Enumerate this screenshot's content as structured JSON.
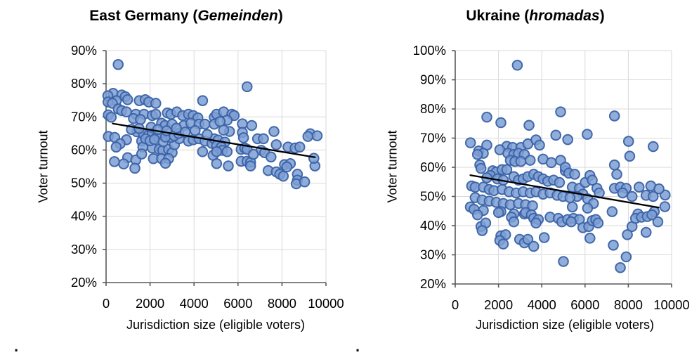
{
  "page": {
    "background": "#ffffff"
  },
  "marks": {
    "dot1": ".",
    "dot2": "."
  },
  "chart_data": [
    {
      "type": "scatter",
      "title_pre": "East Germany (",
      "title_italic": "Gemeinden",
      "title_post": ")",
      "xlabel": "Jurisdiction size (eligible voters)",
      "ylabel": "Voter turnout",
      "xlim": [
        0,
        10000
      ],
      "ylim": [
        20,
        90
      ],
      "x_tick_values": [
        0,
        2000,
        4000,
        6000,
        8000,
        10000
      ],
      "x_tick_labels": [
        "0",
        "2000",
        "4000",
        "6000",
        "8000",
        "10000"
      ],
      "y_tick_values": [
        20,
        30,
        40,
        50,
        60,
        70,
        80,
        90
      ],
      "y_tick_labels": [
        "20%",
        "30%",
        "40%",
        "50%",
        "60%",
        "70%",
        "80%",
        "90%"
      ],
      "grid": true,
      "legend": "none",
      "colors": {
        "point_fill": "#7E9FD4",
        "point_stroke": "#3A62A7",
        "grid": "#D9D9D9",
        "axis": "#595959",
        "trend": "#000000"
      },
      "trendline": {
        "x1": 300,
        "y1": 68.0,
        "x2": 9500,
        "y2": 57.8
      },
      "points": [
        [
          550,
          85.8
        ],
        [
          320,
          77.1
        ],
        [
          80,
          76.4
        ],
        [
          712,
          76.6
        ],
        [
          872,
          76.1
        ],
        [
          470,
          74.9
        ],
        [
          90,
          74.5
        ],
        [
          288,
          74.1
        ],
        [
          980,
          75.2
        ],
        [
          1510,
          74.9
        ],
        [
          1780,
          75.2
        ],
        [
          1940,
          74.5
        ],
        [
          2260,
          74.1
        ],
        [
          4390,
          74.9
        ],
        [
          553,
          72.4
        ],
        [
          712,
          71.9
        ],
        [
          927,
          71.5
        ],
        [
          1352,
          70.8
        ],
        [
          1725,
          70.8
        ],
        [
          2099,
          70.4
        ],
        [
          2259,
          70.8
        ],
        [
          2789,
          71.2
        ],
        [
          2949,
          70.8
        ],
        [
          3217,
          71.5
        ],
        [
          3482,
          70.4
        ],
        [
          3747,
          70.8
        ],
        [
          3961,
          70.4
        ],
        [
          4175,
          69.7
        ],
        [
          100,
          70.6
        ],
        [
          233,
          69.9
        ],
        [
          1246,
          69.5
        ],
        [
          1565,
          69.2
        ],
        [
          2524,
          68.1
        ],
        [
          2684,
          67.4
        ],
        [
          3003,
          67.8
        ],
        [
          3536,
          67.4
        ],
        [
          3856,
          68.1
        ],
        [
          4227,
          67.8
        ],
        [
          4495,
          67.8
        ],
        [
          4920,
          69.9
        ],
        [
          4920,
          67.8
        ],
        [
          6413,
          79.1
        ],
        [
          5026,
          70.8
        ],
        [
          5345,
          71.5
        ],
        [
          5719,
          70.8
        ],
        [
          5825,
          70.4
        ],
        [
          5505,
          69.0
        ],
        [
          5185,
          68.6
        ],
        [
          6198,
          67.9
        ],
        [
          6623,
          67.4
        ],
        [
          6198,
          65.3
        ],
        [
          5613,
          65.6
        ],
        [
          5345,
          66.0
        ],
        [
          7635,
          65.6
        ],
        [
          9286,
          64.9
        ],
        [
          100,
          64.1
        ],
        [
          393,
          63.8
        ],
        [
          927,
          63.1
        ],
        [
          1620,
          62.7
        ],
        [
          1671,
          60.9
        ],
        [
          2099,
          60.6
        ],
        [
          2418,
          60.2
        ],
        [
          2578,
          59.9
        ],
        [
          2844,
          60.2
        ],
        [
          3003,
          59.2
        ],
        [
          3109,
          61.6
        ],
        [
          3323,
          63.4
        ],
        [
          2949,
          63.8
        ],
        [
          3747,
          62.7
        ],
        [
          3961,
          63.1
        ],
        [
          4227,
          63.4
        ],
        [
          4495,
          62.7
        ],
        [
          4814,
          62.0
        ],
        [
          4920,
          63.4
        ],
        [
          4387,
          59.5
        ],
        [
          4867,
          58.4
        ],
        [
          980,
          57.7
        ],
        [
          1352,
          57.0
        ],
        [
          1620,
          58.8
        ],
        [
          2150,
          57.4
        ],
        [
          2524,
          57.4
        ],
        [
          2844,
          57.4
        ],
        [
          1400,
          65.5
        ],
        [
          1700,
          64.8
        ],
        [
          1900,
          64.3
        ],
        [
          2100,
          65.0
        ],
        [
          2300,
          64.0
        ],
        [
          2500,
          64.5
        ],
        [
          1800,
          63.4
        ],
        [
          2000,
          62.8
        ],
        [
          2200,
          63.2
        ],
        [
          2600,
          62.5
        ],
        [
          2700,
          63.9
        ],
        [
          3100,
          64.3
        ],
        [
          3300,
          65.0
        ],
        [
          1150,
          66.2
        ],
        [
          1500,
          66.5
        ],
        [
          2050,
          66.9
        ],
        [
          2350,
          66.2
        ],
        [
          2750,
          65.8
        ],
        [
          3200,
          66.6
        ],
        [
          3600,
          65.4
        ],
        [
          4050,
          65.9
        ],
        [
          4600,
          64.7
        ],
        [
          5100,
          63.0
        ],
        [
          5400,
          62.4
        ],
        [
          5026,
          61.3
        ],
        [
          5240,
          60.9
        ],
        [
          5293,
          59.9
        ],
        [
          5026,
          59.5
        ],
        [
          5505,
          59.5
        ],
        [
          6144,
          60.2
        ],
        [
          6304,
          60.6
        ],
        [
          6413,
          60.2
        ],
        [
          6251,
          63.7
        ],
        [
          6890,
          63.4
        ],
        [
          7156,
          63.4
        ],
        [
          7741,
          61.6
        ],
        [
          8275,
          60.9
        ],
        [
          8594,
          60.6
        ],
        [
          8808,
          60.9
        ],
        [
          9179,
          64.1
        ],
        [
          7051,
          59.9
        ],
        [
          7211,
          59.2
        ],
        [
          5026,
          55.9
        ],
        [
          5559,
          55.2
        ],
        [
          6144,
          56.6
        ],
        [
          6413,
          56.6
        ],
        [
          6572,
          56.3
        ],
        [
          6572,
          55.2
        ],
        [
          7371,
          53.8
        ],
        [
          7741,
          53.4
        ],
        [
          7901,
          52.7
        ],
        [
          8115,
          55.6
        ],
        [
          8381,
          55.9
        ],
        [
          8222,
          54.9
        ],
        [
          8701,
          52.7
        ],
        [
          8701,
          50.9
        ],
        [
          8648,
          49.8
        ],
        [
          9499,
          55.2
        ],
        [
          800,
          55.8
        ],
        [
          1310,
          54.5
        ],
        [
          2700,
          56.0
        ],
        [
          640,
          61.9
        ],
        [
          460,
          60.9
        ],
        [
          380,
          56.5
        ],
        [
          9030,
          50.4
        ],
        [
          9450,
          57.5
        ],
        [
          6700,
          58.7
        ],
        [
          7500,
          57.9
        ],
        [
          8060,
          52.1
        ],
        [
          9600,
          64.3
        ]
      ]
    },
    {
      "type": "scatter",
      "title_pre": "Ukraine (",
      "title_italic": "hromadas",
      "title_post": ")",
      "xlabel": "Jurisdiction size (eligible voters)",
      "ylabel": "Voter turnout",
      "xlim": [
        0,
        10000
      ],
      "ylim": [
        20,
        100
      ],
      "x_tick_values": [
        0,
        2000,
        4000,
        6000,
        8000,
        10000
      ],
      "x_tick_labels": [
        "0",
        "2000",
        "4000",
        "6000",
        "8000",
        "10000"
      ],
      "y_tick_values": [
        20,
        30,
        40,
        50,
        60,
        70,
        80,
        90,
        100
      ],
      "y_tick_labels": [
        "20%",
        "30%",
        "40%",
        "50%",
        "60%",
        "70%",
        "80%",
        "90%",
        "100%"
      ],
      "grid": true,
      "legend": "none",
      "colors": {
        "point_fill": "#7E9FD4",
        "point_stroke": "#3A62A7",
        "grid": "#D9D9D9",
        "axis": "#595959",
        "trend": "#000000"
      },
      "trendline": {
        "x1": 700,
        "y1": 57.3,
        "x2": 9400,
        "y2": 46.2
      },
      "points": [
        [
          2870,
          95.0
        ],
        [
          1461,
          77.2
        ],
        [
          2110,
          75.3
        ],
        [
          3410,
          74.4
        ],
        [
          4870,
          79.0
        ],
        [
          4650,
          71.0
        ],
        [
          7360,
          77.6
        ],
        [
          6100,
          71.3
        ],
        [
          5200,
          69.5
        ],
        [
          8010,
          68.9
        ],
        [
          9150,
          67.1
        ],
        [
          8064,
          63.8
        ],
        [
          7360,
          60.8
        ],
        [
          7468,
          57.6
        ],
        [
          705,
          68.4
        ],
        [
          1461,
          67.6
        ],
        [
          2383,
          67.2
        ],
        [
          2653,
          66.8
        ],
        [
          3033,
          66.8
        ],
        [
          3357,
          68.0
        ],
        [
          3734,
          69.4
        ],
        [
          3896,
          67.6
        ],
        [
          1084,
          65.6
        ],
        [
          1299,
          64.8
        ],
        [
          1029,
          64.4
        ],
        [
          2059,
          66.0
        ],
        [
          2435,
          64.8
        ],
        [
          2708,
          64.4
        ],
        [
          2922,
          64.8
        ],
        [
          3195,
          64.4
        ],
        [
          3465,
          62.4
        ],
        [
          2546,
          62.4
        ],
        [
          2760,
          62.0
        ],
        [
          3033,
          62.0
        ],
        [
          4059,
          62.8
        ],
        [
          4438,
          61.6
        ],
        [
          4871,
          62.4
        ],
        [
          1136,
          60.8
        ],
        [
          1191,
          59.6
        ],
        [
          1733,
          58.8
        ],
        [
          1895,
          58.4
        ],
        [
          2166,
          59.2
        ],
        [
          2383,
          59.2
        ],
        [
          1624,
          57.2
        ],
        [
          1461,
          56.4
        ],
        [
          1949,
          56.0
        ],
        [
          2221,
          55.6
        ],
        [
          2708,
          56.8
        ],
        [
          2922,
          55.6
        ],
        [
          3141,
          56.0
        ],
        [
          3357,
          56.8
        ],
        [
          3627,
          57.6
        ],
        [
          3843,
          56.8
        ],
        [
          4059,
          56.0
        ],
        [
          4276,
          55.2
        ],
        [
          4546,
          55.6
        ],
        [
          4817,
          54.8
        ],
        [
          5088,
          58.8
        ],
        [
          760,
          53.6
        ],
        [
          922,
          53.2
        ],
        [
          1299,
          53.2
        ],
        [
          1571,
          52.4
        ],
        [
          1786,
          52.0
        ],
        [
          2166,
          52.4
        ],
        [
          2491,
          51.6
        ],
        [
          2815,
          51.2
        ],
        [
          3141,
          51.6
        ],
        [
          3465,
          51.2
        ],
        [
          3734,
          51.6
        ],
        [
          4059,
          50.8
        ],
        [
          4384,
          51.2
        ],
        [
          4709,
          50.4
        ],
        [
          4979,
          50.0
        ],
        [
          922,
          49.6
        ],
        [
          1245,
          48.8
        ],
        [
          1571,
          48.4
        ],
        [
          1895,
          48.0
        ],
        [
          2221,
          47.6
        ],
        [
          2546,
          47.2
        ],
        [
          2922,
          47.6
        ],
        [
          3249,
          47.2
        ],
        [
          3573,
          46.8
        ],
        [
          700,
          46.4
        ],
        [
          866,
          45.6
        ],
        [
          1299,
          45.2
        ],
        [
          2110,
          44.8
        ],
        [
          2708,
          44.0
        ],
        [
          3195,
          44.0
        ],
        [
          5088,
          60.0
        ],
        [
          5250,
          58.0
        ],
        [
          5521,
          57.6
        ],
        [
          5413,
          53.2
        ],
        [
          5738,
          52.8
        ],
        [
          6008,
          54.8
        ],
        [
          6225,
          57.2
        ],
        [
          6333,
          55.6
        ],
        [
          6549,
          52.8
        ],
        [
          6657,
          51.2
        ],
        [
          5900,
          50.8
        ],
        [
          5629,
          50.0
        ],
        [
          5305,
          49.6
        ],
        [
          6117,
          49.2
        ],
        [
          6387,
          47.6
        ],
        [
          7360,
          52.8
        ],
        [
          7631,
          53.2
        ],
        [
          7902,
          52.8
        ],
        [
          7739,
          51.2
        ],
        [
          8172,
          50.0
        ],
        [
          8497,
          53.2
        ],
        [
          9038,
          53.6
        ],
        [
          8822,
          50.4
        ],
        [
          9146,
          50.0
        ],
        [
          5413,
          46.4
        ],
        [
          6117,
          46.0
        ],
        [
          7252,
          44.8
        ],
        [
          8443,
          44.0
        ],
        [
          9200,
          44.8
        ],
        [
          1191,
          39.7
        ],
        [
          1408,
          40.9
        ],
        [
          1029,
          43.7
        ],
        [
          2003,
          44.5
        ],
        [
          2598,
          42.9
        ],
        [
          2708,
          41.3
        ],
        [
          3249,
          44.5
        ],
        [
          3519,
          43.7
        ],
        [
          3627,
          42.5
        ],
        [
          3843,
          42.1
        ],
        [
          3734,
          40.9
        ],
        [
          4384,
          42.9
        ],
        [
          4763,
          42.5
        ],
        [
          4925,
          41.3
        ],
        [
          2110,
          36.5
        ],
        [
          2327,
          36.9
        ],
        [
          2059,
          34.9
        ],
        [
          2221,
          33.7
        ],
        [
          2977,
          35.3
        ],
        [
          3195,
          34.1
        ],
        [
          3357,
          35.3
        ],
        [
          3627,
          32.9
        ],
        [
          4113,
          35.9
        ],
        [
          5000,
          27.7
        ],
        [
          5196,
          42.1
        ],
        [
          5467,
          42.5
        ],
        [
          5738,
          42.1
        ],
        [
          5359,
          41.3
        ],
        [
          5900,
          39.3
        ],
        [
          6171,
          39.7
        ],
        [
          6333,
          41.7
        ],
        [
          6495,
          42.1
        ],
        [
          6603,
          40.9
        ],
        [
          6225,
          35.7
        ],
        [
          7306,
          33.3
        ],
        [
          7902,
          29.3
        ],
        [
          7631,
          25.6
        ],
        [
          7956,
          36.9
        ],
        [
          8172,
          39.7
        ],
        [
          8334,
          42.5
        ],
        [
          8605,
          42.9
        ],
        [
          8876,
          43.1
        ],
        [
          9092,
          43.7
        ],
        [
          8822,
          37.7
        ],
        [
          9364,
          41.3
        ],
        [
          9689,
          46.5
        ],
        [
          9700,
          50.5
        ],
        [
          1245,
          38.3
        ],
        [
          9418,
          52.6
        ]
      ]
    }
  ]
}
